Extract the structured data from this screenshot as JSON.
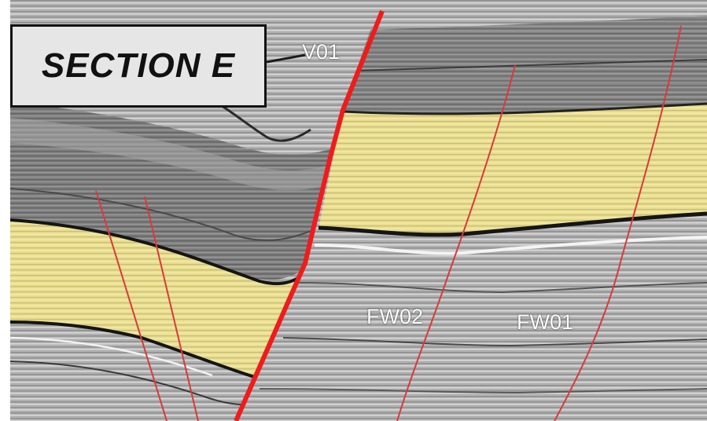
{
  "section": {
    "title": "SECTION E"
  },
  "faults": {
    "v01": {
      "label": "V01",
      "color": "#ee1c1c"
    },
    "fw02": {
      "label": "FW02",
      "color": "#d83a3a"
    },
    "fw01": {
      "label": "FW01",
      "color": "#d83a3a"
    },
    "unlabeled_minor_faults": 2
  },
  "colors": {
    "seismic_background": "#b8b8b8",
    "dark_interval": "#7c7c7c",
    "highlighted_interval": "#e8dc8c",
    "key_horizon": "#111111",
    "main_fault": "#ee1c1c",
    "minor_fault": "#d83a3a"
  }
}
